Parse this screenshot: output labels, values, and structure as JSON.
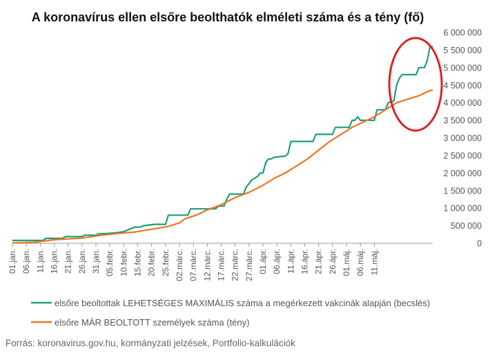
{
  "chart_data": {
    "type": "line",
    "title": "A koronavírus ellen elsőre beolthatók elméleti száma és a tény (fő)",
    "source": "Forrás: koronavirus.gov.hu, kormányzati jelzések, Portfolio-kalkulációk",
    "x_tick_labels": [
      "01.jan.",
      "06.jan.",
      "11.jan.",
      "16.jan.",
      "21.jan.",
      "26.jan.",
      "31.jan.",
      "05.febr.",
      "10.febr.",
      "15.febr.",
      "20.febr.",
      "25.febr.",
      "02.márc.",
      "07.márc.",
      "12.márc.",
      "17.márc.",
      "22.márc.",
      "27.márc.",
      "01.ápr.",
      "06.ápr.",
      "11.ápr.",
      "16.ápr.",
      "21.ápr.",
      "26.ápr.",
      "01.máj.",
      "06.máj.",
      "11.máj."
    ],
    "y_tick_labels": [
      "0",
      "500 000",
      "1 000 000",
      "1 500 000",
      "2 000 000",
      "2 500 000",
      "3 000 000",
      "3 500 000",
      "4 000 000",
      "4 500 000",
      "5 000 000",
      "5 500 000",
      "6 000 000"
    ],
    "ylim": [
      0,
      6000000
    ],
    "x_range_days": [
      0,
      132
    ],
    "grid": false,
    "legend_position": "bottom",
    "series": [
      {
        "name": "elsőre beoltottak LEHETSÉGES MAXIMÁLIS száma a megérkezett vakcinák alapján (becslés)",
        "color": "#1a9e7e",
        "points": [
          [
            0,
            80000
          ],
          [
            11,
            80000
          ],
          [
            12,
            140000
          ],
          [
            18,
            140000
          ],
          [
            19,
            190000
          ],
          [
            25,
            190000
          ],
          [
            26,
            230000
          ],
          [
            30,
            230000
          ],
          [
            31,
            270000
          ],
          [
            34,
            280000
          ],
          [
            37,
            300000
          ],
          [
            40,
            330000
          ],
          [
            42,
            400000
          ],
          [
            44,
            460000
          ],
          [
            46,
            460000
          ],
          [
            47,
            500000
          ],
          [
            49,
            520000
          ],
          [
            51,
            540000
          ],
          [
            55,
            540000
          ],
          [
            56,
            800000
          ],
          [
            63,
            800000
          ],
          [
            64,
            980000
          ],
          [
            73,
            980000
          ],
          [
            74,
            1060000
          ],
          [
            76,
            1060000
          ],
          [
            77,
            1250000
          ],
          [
            78,
            1400000
          ],
          [
            83,
            1400000
          ],
          [
            84,
            1600000
          ],
          [
            85,
            1700000
          ],
          [
            86,
            1800000
          ],
          [
            88,
            1900000
          ],
          [
            89,
            2000000
          ],
          [
            90,
            2000000
          ],
          [
            91,
            2300000
          ],
          [
            92,
            2400000
          ],
          [
            93,
            2400000
          ],
          [
            94,
            2450000
          ],
          [
            98,
            2480000
          ],
          [
            99,
            2550000
          ],
          [
            100,
            2900000
          ],
          [
            108,
            2900000
          ],
          [
            109,
            3100000
          ],
          [
            115,
            3100000
          ],
          [
            116,
            3300000
          ],
          [
            121,
            3300000
          ],
          [
            122,
            3500000
          ],
          [
            123,
            3500000
          ],
          [
            124,
            3600000
          ],
          [
            125,
            3500000
          ],
          [
            130,
            3500000
          ],
          [
            131,
            3800000
          ],
          [
            134,
            3800000
          ],
          [
            135,
            4000000
          ],
          [
            137,
            4050000
          ],
          [
            138,
            4500000
          ],
          [
            139,
            4700000
          ],
          [
            140,
            4800000
          ],
          [
            145,
            4800000
          ],
          [
            146,
            5000000
          ],
          [
            148,
            5000000
          ],
          [
            149,
            5200000
          ],
          [
            150,
            5600000
          ],
          [
            151,
            5600000
          ]
        ]
      },
      {
        "name": "elsőre MÁR BEOLTOTT személyek száma (tény)",
        "color": "#f0731e",
        "points": [
          [
            0,
            10000
          ],
          [
            8,
            30000
          ],
          [
            15,
            100000
          ],
          [
            25,
            150000
          ],
          [
            32,
            230000
          ],
          [
            38,
            280000
          ],
          [
            44,
            320000
          ],
          [
            50,
            400000
          ],
          [
            56,
            480000
          ],
          [
            60,
            580000
          ],
          [
            62,
            700000
          ],
          [
            66,
            800000
          ],
          [
            70,
            950000
          ],
          [
            75,
            1100000
          ],
          [
            80,
            1300000
          ],
          [
            85,
            1450000
          ],
          [
            90,
            1650000
          ],
          [
            94,
            1850000
          ],
          [
            98,
            2000000
          ],
          [
            102,
            2200000
          ],
          [
            106,
            2400000
          ],
          [
            110,
            2650000
          ],
          [
            114,
            2900000
          ],
          [
            118,
            3100000
          ],
          [
            122,
            3300000
          ],
          [
            126,
            3450000
          ],
          [
            130,
            3600000
          ],
          [
            134,
            3800000
          ],
          [
            138,
            4000000
          ],
          [
            142,
            4100000
          ],
          [
            146,
            4200000
          ],
          [
            150,
            4350000
          ],
          [
            151,
            4350000
          ]
        ]
      }
    ]
  },
  "annotation": {
    "type": "circle",
    "color": "#e02020"
  }
}
